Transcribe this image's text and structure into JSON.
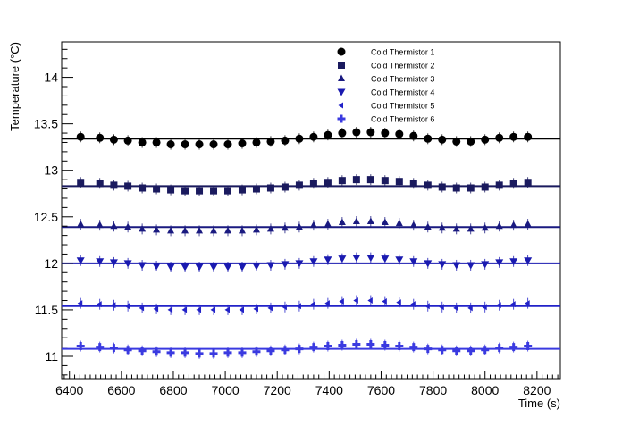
{
  "chart_data": {
    "type": "scatter",
    "title": "",
    "xlabel": "Time (s)",
    "ylabel": "Temperature (°C)",
    "xlim": [
      6370,
      8290
    ],
    "ylim": [
      10.76,
      14.38
    ],
    "xticks": [
      6400,
      6600,
      6800,
      7000,
      7200,
      7400,
      7600,
      7800,
      8000,
      8200
    ],
    "xtick_labels": [
      "6400",
      "6600",
      "6800",
      "7000",
      "7200",
      "7400",
      "7600",
      "7800",
      "8000",
      "8200"
    ],
    "yticks": [
      11,
      11.5,
      12,
      12.5,
      13,
      13.5,
      14
    ],
    "ytick_labels": [
      "11",
      "11.5",
      "12",
      "12.5",
      "13",
      "13.5",
      "14"
    ],
    "grid": false,
    "legend_position": "top-right",
    "x": [
      6443,
      6517,
      6571,
      6625,
      6680,
      6735,
      6790,
      6845,
      6900,
      6955,
      7010,
      7065,
      7120,
      7175,
      7230,
      7285,
      7340,
      7395,
      7450,
      7505,
      7560,
      7615,
      7670,
      7725,
      7780,
      7835,
      7890,
      7945,
      8000,
      8055,
      8110,
      8165
    ],
    "series": [
      {
        "name": "Cold Thermistor 1",
        "color": "#000000",
        "marker": "circle",
        "fit": 13.34,
        "values": [
          13.36,
          13.35,
          13.33,
          13.32,
          13.3,
          13.3,
          13.28,
          13.28,
          13.28,
          13.28,
          13.28,
          13.29,
          13.3,
          13.31,
          13.32,
          13.34,
          13.36,
          13.38,
          13.4,
          13.41,
          13.41,
          13.4,
          13.39,
          13.37,
          13.34,
          13.33,
          13.31,
          13.31,
          13.33,
          13.35,
          13.36,
          13.36
        ]
      },
      {
        "name": "Cold Thermistor 2",
        "color": "#1a1a5e",
        "marker": "square",
        "fit": 12.83,
        "values": [
          12.87,
          12.86,
          12.84,
          12.83,
          12.81,
          12.8,
          12.79,
          12.78,
          12.78,
          12.78,
          12.78,
          12.79,
          12.8,
          12.81,
          12.82,
          12.84,
          12.86,
          12.87,
          12.89,
          12.9,
          12.9,
          12.89,
          12.88,
          12.86,
          12.84,
          12.82,
          12.81,
          12.81,
          12.82,
          12.84,
          12.86,
          12.87
        ]
      },
      {
        "name": "Cold Thermistor 3",
        "color": "#1a1a80",
        "marker": "triangle-up",
        "fit": 12.39,
        "values": [
          12.42,
          12.41,
          12.4,
          12.39,
          12.37,
          12.36,
          12.35,
          12.35,
          12.35,
          12.35,
          12.35,
          12.35,
          12.36,
          12.37,
          12.38,
          12.39,
          12.41,
          12.42,
          12.44,
          12.45,
          12.45,
          12.44,
          12.43,
          12.41,
          12.39,
          12.38,
          12.37,
          12.37,
          12.38,
          12.4,
          12.41,
          12.42
        ]
      },
      {
        "name": "Cold Thermistor 4",
        "color": "#1a1ab0",
        "marker": "triangle-down",
        "fit": 12.0,
        "values": [
          12.03,
          12.02,
          12.01,
          12.0,
          11.98,
          11.97,
          11.96,
          11.96,
          11.96,
          11.96,
          11.96,
          11.96,
          11.97,
          11.98,
          11.99,
          12.0,
          12.02,
          12.04,
          12.05,
          12.06,
          12.06,
          12.05,
          12.04,
          12.02,
          12.0,
          11.99,
          11.98,
          11.98,
          11.99,
          12.01,
          12.02,
          12.03
        ]
      },
      {
        "name": "Cold Thermistor 5",
        "color": "#2222c8",
        "marker": "diamond-left",
        "fit": 11.54,
        "values": [
          11.57,
          11.56,
          11.55,
          11.54,
          11.52,
          11.51,
          11.5,
          11.5,
          11.5,
          11.5,
          11.5,
          11.5,
          11.51,
          11.52,
          11.53,
          11.54,
          11.56,
          11.57,
          11.59,
          11.6,
          11.6,
          11.59,
          11.58,
          11.56,
          11.54,
          11.53,
          11.52,
          11.52,
          11.53,
          11.55,
          11.56,
          11.57
        ]
      },
      {
        "name": "Cold Thermistor 6",
        "color": "#3a3ae0",
        "marker": "cross",
        "fit": 11.08,
        "values": [
          11.11,
          11.1,
          11.09,
          11.07,
          11.06,
          11.05,
          11.04,
          11.04,
          11.03,
          11.03,
          11.04,
          11.04,
          11.05,
          11.06,
          11.07,
          11.08,
          11.1,
          11.11,
          11.12,
          11.13,
          11.13,
          11.12,
          11.11,
          11.1,
          11.08,
          11.07,
          11.06,
          11.06,
          11.07,
          11.09,
          11.1,
          11.11
        ]
      }
    ]
  }
}
